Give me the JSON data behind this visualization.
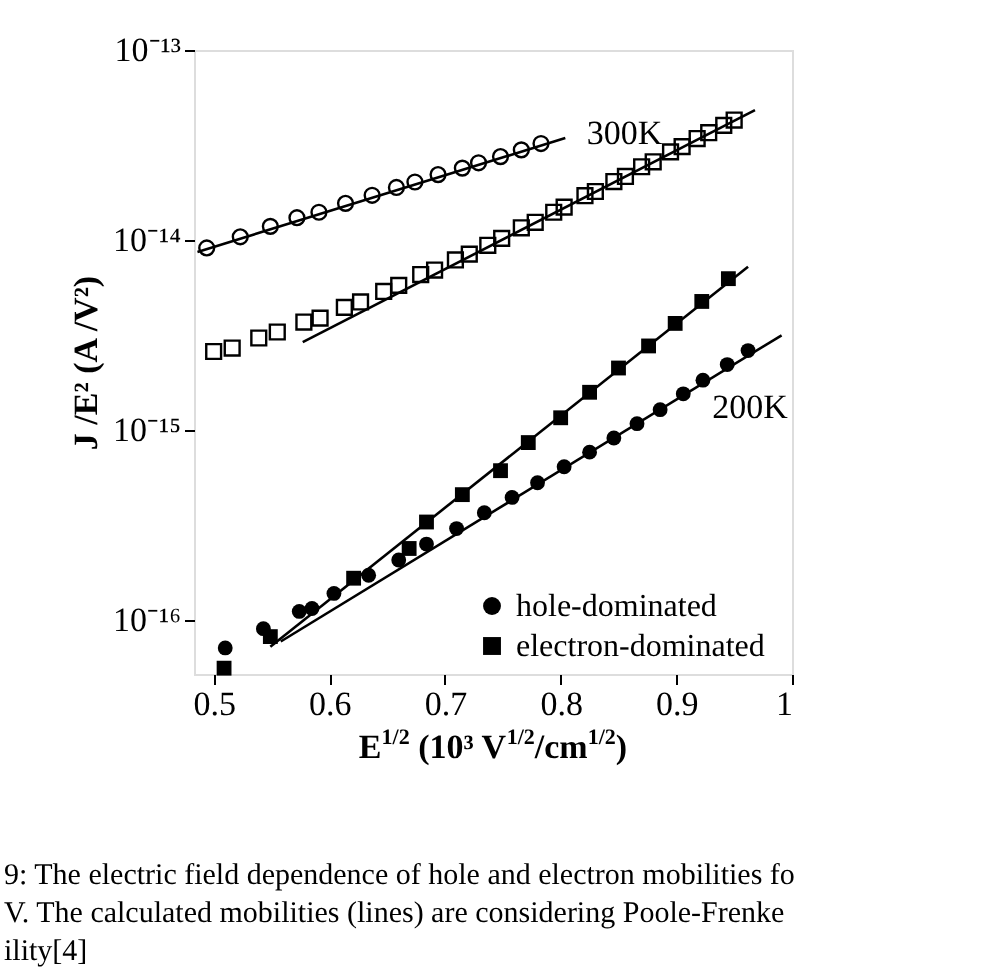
{
  "chart_data": {
    "type": "scatter",
    "xlabel": "E$^{1/2}$ (10³ V$^{1/2}$/cm$^{1/2}$)",
    "ylabel": "J /E² (A /V²)",
    "log": "y",
    "grid": false,
    "legend": "bottom right",
    "xlim": [
      0.483,
      1
    ],
    "xticks": [
      0.5,
      0.6,
      0.7,
      0.8,
      0.9,
      1
    ],
    "ylim": [
      5.2e-17,
      1e-13
    ],
    "yticks": [
      {
        "value": 1e-16,
        "label": "10⁻¹⁶"
      },
      {
        "value": 1e-15,
        "label": "10⁻¹⁵"
      },
      {
        "value": 1e-14,
        "label": "10⁻¹⁴"
      },
      {
        "value": 1e-13,
        "label": "10⁻¹³"
      }
    ],
    "series": [
      {
        "marker": "circle",
        "color": "#000000",
        "x": [
          0.494,
          0.523,
          0.549,
          0.572,
          0.591,
          0.614,
          0.637,
          0.658,
          0.674,
          0.694,
          0.715,
          0.729,
          0.748,
          0.766,
          0.783
        ],
        "values": [
          9.08e-15,
          1.04e-14,
          1.18e-14,
          1.31e-14,
          1.4e-14,
          1.56e-14,
          1.72e-14,
          1.89e-14,
          2.02e-14,
          2.21e-14,
          2.39e-14,
          2.55e-14,
          2.75e-14,
          2.98e-14,
          3.22e-14
        ]
      },
      {
        "marker": "square",
        "color": "#000000",
        "x": [
          0.5,
          0.516,
          0.539,
          0.555,
          0.578,
          0.592,
          0.613,
          0.627,
          0.647,
          0.66,
          0.679,
          0.691,
          0.709,
          0.721,
          0.737,
          0.749,
          0.766,
          0.778,
          0.794,
          0.803,
          0.821,
          0.83,
          0.846,
          0.856,
          0.87,
          0.88,
          0.895,
          0.905,
          0.918,
          0.928,
          0.941,
          0.95
        ],
        "values": [
          2.59e-15,
          2.7e-15,
          3.05e-15,
          3.28e-15,
          3.7e-15,
          3.88e-15,
          4.42e-15,
          4.72e-15,
          5.36e-15,
          5.77e-15,
          6.58e-15,
          6.95e-15,
          7.85e-15,
          8.43e-15,
          9.38e-15,
          1.02e-14,
          1.16e-14,
          1.24e-14,
          1.4e-14,
          1.49e-14,
          1.71e-14,
          1.8e-14,
          2.03e-14,
          2.16e-14,
          2.43e-14,
          2.58e-14,
          2.91e-14,
          3.1e-14,
          3.42e-14,
          3.67e-14,
          4.01e-14,
          4.28e-14
        ]
      },
      {
        "name": "hole-dominated",
        "marker": "circle",
        "color": "#000000",
        "x": [
          0.51,
          0.543,
          0.574,
          0.585,
          0.604,
          0.634,
          0.66,
          0.684,
          0.71,
          0.734,
          0.758,
          0.78,
          0.803,
          0.825,
          0.846,
          0.866,
          0.886,
          0.906,
          0.923,
          0.944,
          0.962
        ],
        "values": [
          7.13e-17,
          9.01e-17,
          1.11e-16,
          1.15e-16,
          1.38e-16,
          1.72e-16,
          2.07e-16,
          2.51e-16,
          3.03e-16,
          3.67e-16,
          4.42e-16,
          5.28e-16,
          6.41e-16,
          7.65e-16,
          9.08e-16,
          1.08e-15,
          1.28e-15,
          1.55e-15,
          1.83e-15,
          2.21e-15,
          2.62e-15
        ]
      },
      {
        "name": "electron-dominated",
        "marker": "square",
        "color": "#000000",
        "x": [
          0.509,
          0.549,
          0.621,
          0.669,
          0.684,
          0.715,
          0.748,
          0.772,
          0.8,
          0.825,
          0.85,
          0.876,
          0.899,
          0.922,
          0.945
        ],
        "values": [
          5.58e-17,
          8.18e-17,
          1.66e-16,
          2.38e-16,
          3.28e-16,
          4.57e-16,
          6.11e-16,
          8.59e-16,
          1.16e-15,
          1.58e-15,
          2.12e-15,
          2.77e-15,
          3.64e-15,
          4.75e-15,
          6.26e-15
        ]
      },
      {
        "type": "line",
        "line_style": "solid",
        "color": "#000000",
        "x": [
          0.486,
          0.804
        ],
        "values": [
          8.65e-15,
          3.44e-14
        ]
      },
      {
        "type": "line",
        "line_style": "solid",
        "color": "#000000",
        "x": [
          0.577,
          0.968
        ],
        "values": [
          2.9e-15,
          4.83e-14
        ]
      },
      {
        "type": "line",
        "line_style": "solid",
        "color": "#000000",
        "x": [
          0.558,
          0.991
        ],
        "values": [
          7.71e-17,
          3.15e-15
        ]
      },
      {
        "type": "line",
        "line_style": "solid",
        "color": "#000000",
        "x": [
          0.549,
          0.962
        ],
        "values": [
          7.24e-17,
          7.24e-15
        ]
      }
    ],
    "annotations": [
      "300K",
      "200K",
      "9: The electric field dependence of hole and electron mobilities fo",
      "V. The calculated mobilities (lines) are considering Poole-Frenke",
      "ility[4]"
    ]
  }
}
